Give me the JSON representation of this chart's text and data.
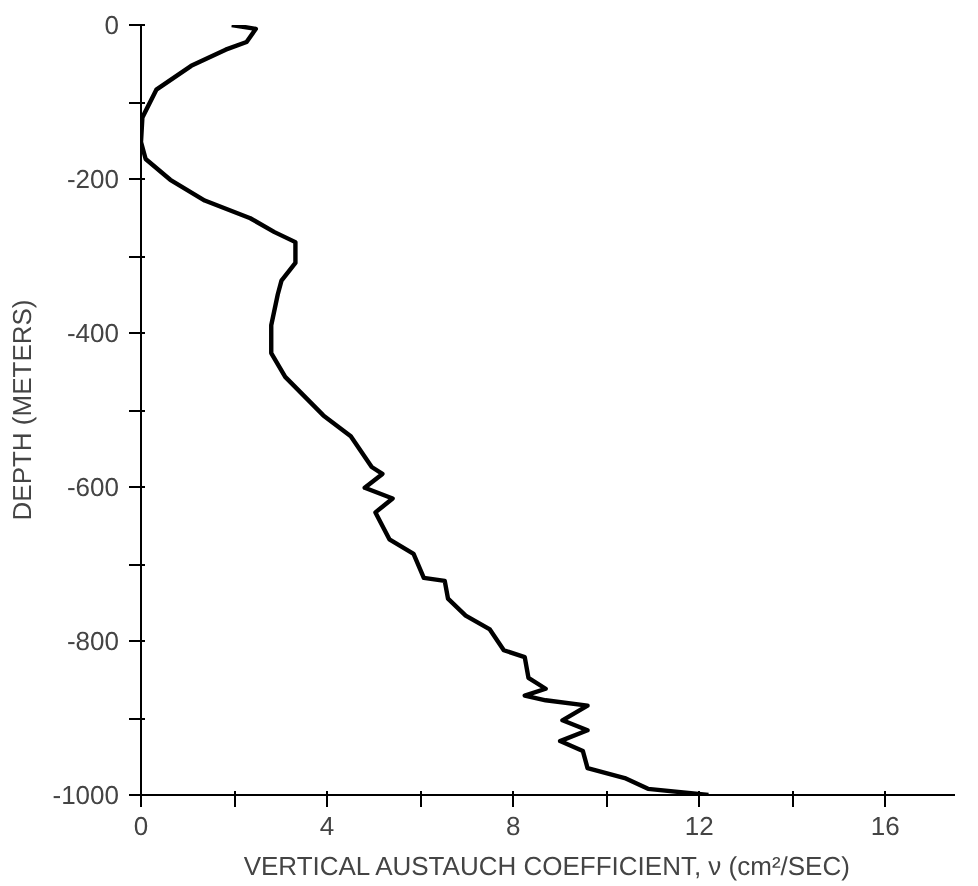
{
  "chart_data": {
    "type": "line",
    "xlabel": "VERTICAL AUSTAUCH COEFFICIENT, ν (cm²/SEC)",
    "ylabel": "DEPTH (METERS)",
    "xlim": [
      0,
      17.5
    ],
    "ylim": [
      -1000,
      0
    ],
    "xticks": [
      0,
      {
        "value": 2,
        "label": null
      },
      4,
      {
        "value": 6,
        "label": null
      },
      8,
      {
        "value": 10,
        "label": null
      },
      12,
      {
        "value": 14,
        "label": null
      },
      16
    ],
    "yticks": [
      {
        "value": -1000,
        "label": "-1000"
      },
      {
        "value": -900,
        "label": null
      },
      {
        "value": -800,
        "label": "-800"
      },
      {
        "value": -700,
        "label": null
      },
      {
        "value": -600,
        "label": "-600"
      },
      {
        "value": -500,
        "label": null
      },
      {
        "value": -400,
        "label": "-400"
      },
      {
        "value": -300,
        "label": null
      },
      {
        "value": -200,
        "label": "-200"
      },
      {
        "value": -100,
        "label": null
      },
      {
        "value": 0,
        "label": "0"
      }
    ],
    "grid": false,
    "marker": "none",
    "line_style": "solid",
    "series": [
      {
        "color": "#000000",
        "x": [
          1.95,
          2.47,
          2.27,
          1.82,
          1.08,
          0.33,
          0.03,
          0,
          0.1,
          0.63,
          1.37,
          2.35,
          2.87,
          3.32,
          3.32,
          3.02,
          2.94,
          2.8,
          2.8,
          3.1,
          3.92,
          4.51,
          4.96,
          5.19,
          4.81,
          5.41,
          5.04,
          5.34,
          5.86,
          6.08,
          6.53,
          6.6,
          6.98,
          7.5,
          7.8,
          8.25,
          8.33,
          8.7,
          8.25,
          8.7,
          9.6,
          9.06,
          9.6,
          9.01,
          9.5,
          9.6,
          10.4,
          10.9,
          12.2
        ],
        "values": [
          0,
          -5,
          -22,
          -32,
          -53,
          -84,
          -120,
          -152,
          -174,
          -201,
          -228,
          -251,
          -269,
          -282,
          -309,
          -332,
          -350,
          -390,
          -426,
          -457,
          -507,
          -534,
          -574,
          -583,
          -601,
          -615,
          -633,
          -668,
          -687,
          -718,
          -722,
          -745,
          -767,
          -785,
          -812,
          -821,
          -848,
          -862,
          -871,
          -877,
          -884,
          -903,
          -916,
          -930,
          -943,
          -965,
          -978,
          -992,
          -1000
        ]
      }
    ]
  }
}
